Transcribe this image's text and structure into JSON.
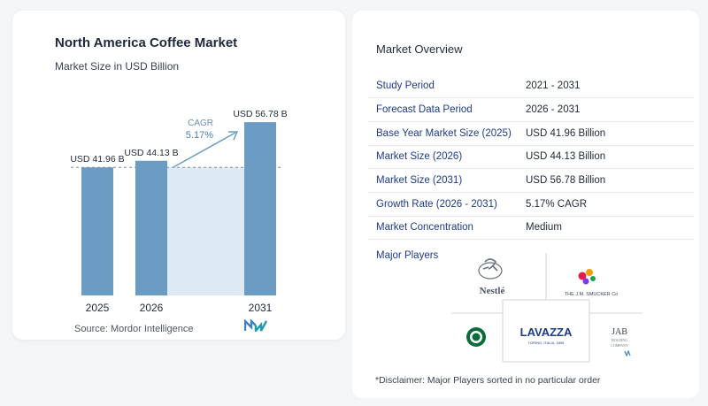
{
  "chart_data": {
    "type": "bar",
    "title": "North America Coffee Market",
    "subtitle": "Market Size in USD Billion",
    "categories": [
      "2025",
      "2026",
      "2031"
    ],
    "values": [
      41.96,
      44.13,
      56.78
    ],
    "value_labels": [
      "USD 41.96 B",
      "USD 44.13 B",
      "USD 56.78 B"
    ],
    "cagr_label": "CAGR",
    "cagr_value": "5.17%",
    "bar_color": "#6b9cc4",
    "band_color": "#dde9f3"
  },
  "source": "Source:  Mordor Intelligence",
  "overview": {
    "title": "Market Overview",
    "rows": [
      {
        "label": "Study Period",
        "value": "2021 - 2031"
      },
      {
        "label": "Forecast Data Period",
        "value": "2026 - 2031"
      },
      {
        "label": "Base Year Market Size (2025)",
        "value": "USD 41.96 Billion"
      },
      {
        "label": "Market Size (2026)",
        "value": "USD 44.13 Billion"
      },
      {
        "label": "Market Size (2031)",
        "value": "USD 56.78 Billion"
      },
      {
        "label": "Growth Rate (2026 - 2031)",
        "value": "5.17% CAGR"
      },
      {
        "label": "Market Concentration",
        "value": "Medium"
      }
    ],
    "players_label": "Major Players",
    "players": {
      "nestle": "Nestlé",
      "smucker": "THE J.M. SMUCKER Co",
      "lavazza": "LAVAZZA",
      "lavazza_sub": "TORINO, ITALIA, 1895",
      "jab": "JAB",
      "jab_sub1": "HOLDING",
      "jab_sub2": "COMPANY"
    },
    "disclaimer": "*Disclaimer: Major Players sorted in no particular order"
  }
}
